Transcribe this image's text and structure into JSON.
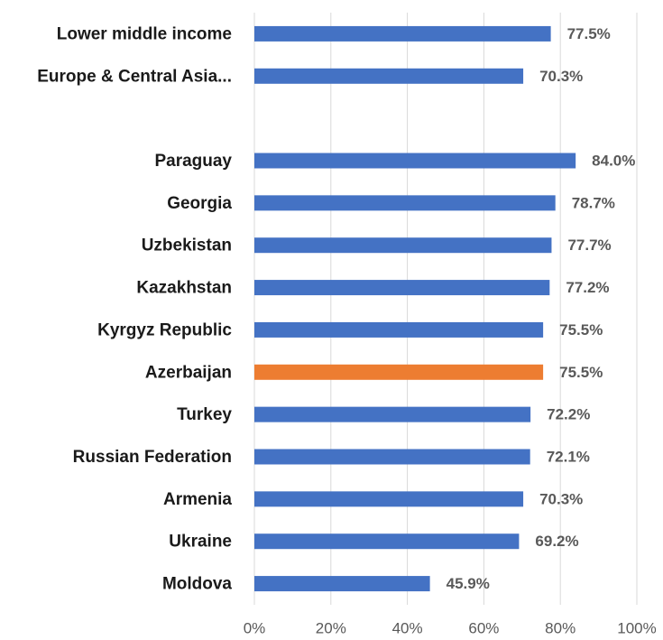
{
  "chart_data": {
    "type": "hbar",
    "categories": [
      "Lower middle income",
      "Europe & Central Asia...",
      null,
      "Paraguay",
      "Georgia",
      "Uzbekistan",
      "Kazakhstan",
      "Kyrgyz Republic",
      "Azerbaijan",
      "Turkey",
      "Russian Federation",
      "Armenia",
      "Ukraine",
      "Moldova"
    ],
    "values": [
      77.5,
      70.3,
      null,
      84.0,
      78.7,
      77.7,
      77.2,
      75.5,
      75.5,
      72.2,
      72.1,
      70.3,
      69.2,
      45.9
    ],
    "value_labels": [
      "77.5%",
      "70.3%",
      null,
      "84.0%",
      "78.7%",
      "77.7%",
      "77.2%",
      "75.5%",
      "75.5%",
      "72.2%",
      "72.1%",
      "70.3%",
      "69.2%",
      "45.9%"
    ],
    "colors": [
      "#4472c4",
      "#4472c4",
      null,
      "#4472c4",
      "#4472c4",
      "#4472c4",
      "#4472c4",
      "#4472c4",
      "#ed7d31",
      "#4472c4",
      "#4472c4",
      "#4472c4",
      "#4472c4",
      "#4472c4"
    ],
    "xlim": [
      0,
      100
    ],
    "xticks": [
      {
        "value": 0,
        "label": "0%"
      },
      {
        "value": 20,
        "label": "20%"
      },
      {
        "value": 40,
        "label": "40%"
      },
      {
        "value": 60,
        "label": "60%"
      },
      {
        "value": 80,
        "label": "80%"
      },
      {
        "value": 100,
        "label": "100%"
      }
    ],
    "grid": true
  }
}
